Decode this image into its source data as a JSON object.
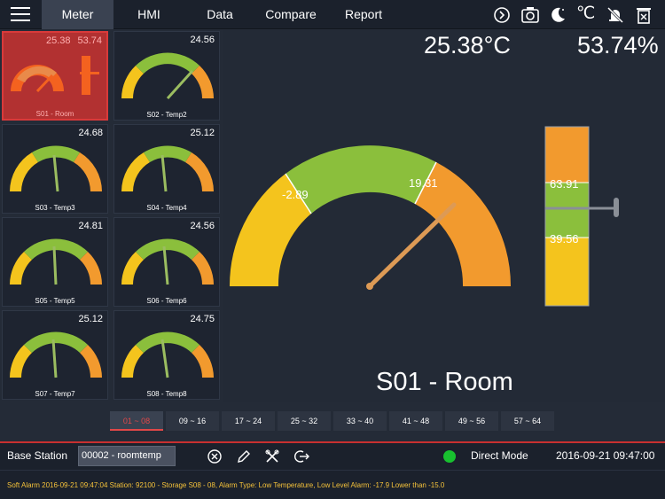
{
  "nav": {
    "tabs": [
      {
        "label": "Meter",
        "active": true
      },
      {
        "label": "HMI"
      },
      {
        "label": "Data"
      },
      {
        "label": "Compare"
      },
      {
        "label": "Report"
      }
    ],
    "icons": [
      "sync-icon",
      "camera-icon",
      "night-mode-icon",
      "celsius-icon",
      "alarm-mute-icon",
      "clear-icon"
    ],
    "celsius_label": "℃"
  },
  "sensors": [
    {
      "name": "S01 - Room",
      "temp": "25.38",
      "hum": "53.74",
      "selected": true
    },
    {
      "name": "S02 - Temp2",
      "value": "24.56"
    },
    {
      "name": "S03 - Temp3",
      "value": "24.68"
    },
    {
      "name": "S04 - Temp4",
      "value": "25.12"
    },
    {
      "name": "S05 - Temp5",
      "value": "24.81"
    },
    {
      "name": "S06 - Temp6",
      "value": "24.56"
    },
    {
      "name": "S07 - Temp7",
      "value": "25.12"
    },
    {
      "name": "S08 - Temp8",
      "value": "24.75"
    }
  ],
  "main": {
    "temperature": "25.38°C",
    "humidity": "53.74%",
    "sensor_name": "S01 - Room",
    "gauge_low": "-2.89",
    "gauge_high": "19.31",
    "bar_high": "63.91",
    "bar_low": "39.56"
  },
  "pager": [
    "01 ~ 08",
    "09 ~ 16",
    "17 ~ 24",
    "25 ~ 32",
    "33 ~ 40",
    "41 ~ 48",
    "49 ~ 56",
    "57 ~ 64"
  ],
  "bottom": {
    "base_station_label": "Base Station",
    "station_value": "00002 - roomtemp",
    "mode": "Direct Mode",
    "datetime": "2016-09-21 09:47:00"
  },
  "alarm": "Soft Alarm 2016-09-21 09:47:04 Station: 92100   - Storage S08 - 08, Alarm Type: Low Temperature, Low Level Alarm: -17.9 Lower than -15.0",
  "colors": {
    "yellow": "#f4c41d",
    "green": "#8bbf3c",
    "orange": "#f29a2e",
    "accent_red": "#e04848",
    "status_green": "#18c12f"
  }
}
